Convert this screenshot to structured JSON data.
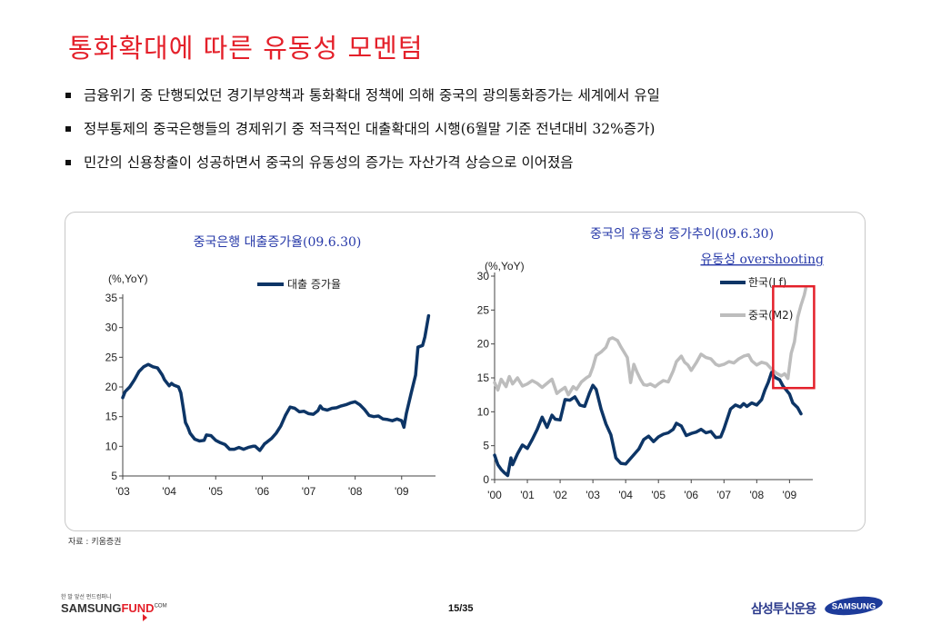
{
  "title": "통화확대에 따른 유동성 모멘텀",
  "bullets": [
    "금융위기 중 단행되었던 경기부양책과 통화확대 정책에 의해 중국의 광의통화증가는 세계에서 유일",
    "정부통제의 중국은행들의 경제위기 중 적극적인 대출확대의 시행(6월말 기준 전년대비 32%증가)",
    "민간의 신용창출이 성공하면서 중국의 유동성의 증가는 자산가격 상승으로 이어졌음"
  ],
  "source": "자료 : 키움증권",
  "page": "15/35",
  "footer": {
    "tagline": "한 발 앞선 펀드컴퍼니",
    "logo_a": "SAMSUNG",
    "logo_b": "FUND",
    "logo_c": "COM",
    "company": "삼성투신운용",
    "samsung": "SAMSUNG"
  },
  "colors": {
    "title": "#e4202a",
    "series_dark": "#0d3566",
    "series_gray": "#bdbdbd",
    "highlight": "#e4202a",
    "chart_title": "#2638a8"
  },
  "chart_data": [
    {
      "type": "line",
      "title": "중국은행 대출증가율(09.6.30)",
      "ylabel": "(%,YoY)",
      "ylim": [
        5,
        35
      ],
      "yticks": [
        5,
        10,
        15,
        20,
        25,
        30,
        35
      ],
      "xlim": [
        2003.0,
        2009.65
      ],
      "xticks": [
        "'03",
        "'04",
        "'05",
        "'06",
        "'07",
        "'08",
        "'09"
      ],
      "legend_position": "top-right",
      "series": [
        {
          "name": "대출 증가율",
          "points": [
            [
              2003.0,
              18.2
            ],
            [
              2003.05,
              19.2
            ],
            [
              2003.15,
              20.0
            ],
            [
              2003.25,
              21.2
            ],
            [
              2003.35,
              22.6
            ],
            [
              2003.45,
              23.4
            ],
            [
              2003.55,
              23.8
            ],
            [
              2003.65,
              23.4
            ],
            [
              2003.75,
              23.2
            ],
            [
              2003.85,
              22.0
            ],
            [
              2003.9,
              21.2
            ],
            [
              2004.0,
              20.2
            ],
            [
              2004.05,
              20.6
            ],
            [
              2004.1,
              20.3
            ],
            [
              2004.2,
              20.0
            ],
            [
              2004.25,
              19.0
            ],
            [
              2004.3,
              16.5
            ],
            [
              2004.35,
              14.0
            ],
            [
              2004.4,
              13.2
            ],
            [
              2004.45,
              12.2
            ],
            [
              2004.55,
              11.2
            ],
            [
              2004.65,
              10.9
            ],
            [
              2004.75,
              11.0
            ],
            [
              2004.8,
              11.9
            ],
            [
              2004.9,
              11.8
            ],
            [
              2005.0,
              11.0
            ],
            [
              2005.1,
              10.6
            ],
            [
              2005.2,
              10.3
            ],
            [
              2005.3,
              9.5
            ],
            [
              2005.4,
              9.5
            ],
            [
              2005.5,
              9.8
            ],
            [
              2005.6,
              9.5
            ],
            [
              2005.7,
              9.8
            ],
            [
              2005.8,
              10.0
            ],
            [
              2005.85,
              10.0
            ],
            [
              2005.95,
              9.3
            ],
            [
              2006.05,
              10.4
            ],
            [
              2006.1,
              10.7
            ],
            [
              2006.2,
              11.3
            ],
            [
              2006.3,
              12.2
            ],
            [
              2006.4,
              13.4
            ],
            [
              2006.5,
              15.2
            ],
            [
              2006.6,
              16.6
            ],
            [
              2006.7,
              16.4
            ],
            [
              2006.8,
              15.8
            ],
            [
              2006.9,
              15.9
            ],
            [
              2007.0,
              15.5
            ],
            [
              2007.1,
              15.4
            ],
            [
              2007.2,
              16.0
            ],
            [
              2007.25,
              16.8
            ],
            [
              2007.3,
              16.3
            ],
            [
              2007.4,
              16.1
            ],
            [
              2007.5,
              16.4
            ],
            [
              2007.6,
              16.5
            ],
            [
              2007.7,
              16.8
            ],
            [
              2007.8,
              17.0
            ],
            [
              2007.9,
              17.3
            ],
            [
              2008.0,
              17.5
            ],
            [
              2008.1,
              17.0
            ],
            [
              2008.2,
              16.2
            ],
            [
              2008.3,
              15.2
            ],
            [
              2008.4,
              15.0
            ],
            [
              2008.5,
              15.1
            ],
            [
              2008.6,
              14.6
            ],
            [
              2008.7,
              14.5
            ],
            [
              2008.8,
              14.3
            ],
            [
              2008.9,
              14.6
            ],
            [
              2009.0,
              14.3
            ],
            [
              2009.05,
              13.2
            ],
            [
              2009.1,
              15.5
            ],
            [
              2009.2,
              18.8
            ],
            [
              2009.3,
              22.0
            ],
            [
              2009.35,
              26.7
            ],
            [
              2009.45,
              27.0
            ],
            [
              2009.5,
              28.4
            ],
            [
              2009.58,
              32.0
            ]
          ]
        }
      ]
    },
    {
      "type": "line",
      "title": "중국의 유동성 증가추이(09.6.30)",
      "ylabel": "(%,YoY)",
      "ylim": [
        0,
        30
      ],
      "yticks": [
        0,
        5,
        10,
        15,
        20,
        25,
        30
      ],
      "xlim": [
        2000.0,
        2009.6
      ],
      "xticks": [
        "'00",
        "'01",
        "'02",
        "'03",
        "'04",
        "'05",
        "'06",
        "'07",
        "'08",
        "'09"
      ],
      "legend_position": "top-right",
      "annotation": "유동성 overshooting",
      "series": [
        {
          "name": "한국(Lf)",
          "points": [
            [
              2000.0,
              3.6
            ],
            [
              2000.1,
              2.2
            ],
            [
              2000.2,
              1.5
            ],
            [
              2000.3,
              1.0
            ],
            [
              2000.4,
              0.6
            ],
            [
              2000.5,
              3.2
            ],
            [
              2000.55,
              2.2
            ],
            [
              2000.7,
              3.8
            ],
            [
              2000.85,
              5.1
            ],
            [
              2001.0,
              4.6
            ],
            [
              2001.15,
              5.9
            ],
            [
              2001.3,
              7.4
            ],
            [
              2001.45,
              9.2
            ],
            [
              2001.6,
              7.7
            ],
            [
              2001.75,
              9.5
            ],
            [
              2001.85,
              8.9
            ],
            [
              2002.0,
              8.8
            ],
            [
              2002.15,
              11.8
            ],
            [
              2002.3,
              11.7
            ],
            [
              2002.45,
              12.2
            ],
            [
              2002.6,
              11.0
            ],
            [
              2002.75,
              10.8
            ],
            [
              2002.9,
              12.8
            ],
            [
              2003.0,
              13.9
            ],
            [
              2003.1,
              13.3
            ],
            [
              2003.25,
              10.4
            ],
            [
              2003.4,
              8.2
            ],
            [
              2003.55,
              6.6
            ],
            [
              2003.7,
              3.2
            ],
            [
              2003.85,
              2.4
            ],
            [
              2004.0,
              2.3
            ],
            [
              2004.2,
              3.4
            ],
            [
              2004.4,
              4.5
            ],
            [
              2004.55,
              5.9
            ],
            [
              2004.7,
              6.4
            ],
            [
              2004.85,
              5.6
            ],
            [
              2005.0,
              6.3
            ],
            [
              2005.15,
              6.7
            ],
            [
              2005.3,
              6.9
            ],
            [
              2005.45,
              7.4
            ],
            [
              2005.55,
              8.3
            ],
            [
              2005.7,
              7.9
            ],
            [
              2005.85,
              6.5
            ],
            [
              2006.0,
              6.8
            ],
            [
              2006.15,
              7.0
            ],
            [
              2006.3,
              7.4
            ],
            [
              2006.45,
              6.9
            ],
            [
              2006.6,
              7.1
            ],
            [
              2006.75,
              6.2
            ],
            [
              2006.9,
              6.3
            ],
            [
              2007.0,
              7.5
            ],
            [
              2007.2,
              10.4
            ],
            [
              2007.35,
              11.0
            ],
            [
              2007.5,
              10.7
            ],
            [
              2007.6,
              11.2
            ],
            [
              2007.7,
              10.8
            ],
            [
              2007.85,
              11.3
            ],
            [
              2008.0,
              11.0
            ],
            [
              2008.15,
              11.8
            ],
            [
              2008.25,
              13.2
            ],
            [
              2008.35,
              14.3
            ],
            [
              2008.45,
              15.8
            ],
            [
              2008.55,
              15.1
            ],
            [
              2008.7,
              14.7
            ],
            [
              2008.8,
              13.8
            ],
            [
              2008.9,
              13.2
            ],
            [
              2009.0,
              12.6
            ],
            [
              2009.1,
              11.3
            ],
            [
              2009.25,
              10.6
            ],
            [
              2009.35,
              9.7
            ]
          ]
        },
        {
          "name": "중국(M2)",
          "points": [
            [
              2000.0,
              14.3
            ],
            [
              2000.1,
              13.2
            ],
            [
              2000.2,
              14.8
            ],
            [
              2000.35,
              13.7
            ],
            [
              2000.45,
              15.2
            ],
            [
              2000.55,
              14.1
            ],
            [
              2000.7,
              15.0
            ],
            [
              2000.85,
              13.8
            ],
            [
              2001.0,
              14.1
            ],
            [
              2001.15,
              14.6
            ],
            [
              2001.3,
              14.2
            ],
            [
              2001.45,
              13.6
            ],
            [
              2001.6,
              14.2
            ],
            [
              2001.75,
              14.8
            ],
            [
              2001.9,
              12.7
            ],
            [
              2002.0,
              13.1
            ],
            [
              2002.15,
              13.6
            ],
            [
              2002.25,
              12.5
            ],
            [
              2002.4,
              13.7
            ],
            [
              2002.5,
              13.3
            ],
            [
              2002.65,
              14.4
            ],
            [
              2002.8,
              15.0
            ],
            [
              2002.9,
              15.3
            ],
            [
              2003.0,
              16.6
            ],
            [
              2003.1,
              18.3
            ],
            [
              2003.25,
              18.8
            ],
            [
              2003.4,
              19.5
            ],
            [
              2003.5,
              20.7
            ],
            [
              2003.6,
              20.9
            ],
            [
              2003.75,
              20.5
            ],
            [
              2003.85,
              19.6
            ],
            [
              2003.95,
              18.8
            ],
            [
              2004.05,
              18.0
            ],
            [
              2004.1,
              16.2
            ],
            [
              2004.15,
              14.3
            ],
            [
              2004.25,
              17.0
            ],
            [
              2004.35,
              15.8
            ],
            [
              2004.45,
              14.8
            ],
            [
              2004.55,
              14.0
            ],
            [
              2004.65,
              13.9
            ],
            [
              2004.75,
              14.1
            ],
            [
              2004.9,
              13.7
            ],
            [
              2005.0,
              14.1
            ],
            [
              2005.15,
              14.6
            ],
            [
              2005.3,
              14.4
            ],
            [
              2005.45,
              16.0
            ],
            [
              2005.55,
              17.4
            ],
            [
              2005.7,
              18.2
            ],
            [
              2005.8,
              17.3
            ],
            [
              2005.9,
              16.9
            ],
            [
              2006.0,
              16.1
            ],
            [
              2006.15,
              17.2
            ],
            [
              2006.3,
              18.5
            ],
            [
              2006.45,
              18.0
            ],
            [
              2006.6,
              17.8
            ],
            [
              2006.75,
              17.0
            ],
            [
              2006.85,
              16.8
            ],
            [
              2007.0,
              17.0
            ],
            [
              2007.15,
              17.4
            ],
            [
              2007.3,
              17.2
            ],
            [
              2007.45,
              17.8
            ],
            [
              2007.6,
              18.2
            ],
            [
              2007.75,
              18.4
            ],
            [
              2007.85,
              17.5
            ],
            [
              2008.0,
              16.9
            ],
            [
              2008.15,
              17.3
            ],
            [
              2008.3,
              17.1
            ],
            [
              2008.45,
              16.3
            ],
            [
              2008.6,
              15.7
            ],
            [
              2008.75,
              15.3
            ],
            [
              2008.85,
              15.6
            ],
            [
              2008.95,
              14.9
            ],
            [
              2009.05,
              18.6
            ],
            [
              2009.15,
              20.3
            ],
            [
              2009.25,
              23.9
            ],
            [
              2009.35,
              25.7
            ],
            [
              2009.45,
              27.2
            ],
            [
              2009.5,
              28.3
            ]
          ]
        }
      ]
    }
  ]
}
